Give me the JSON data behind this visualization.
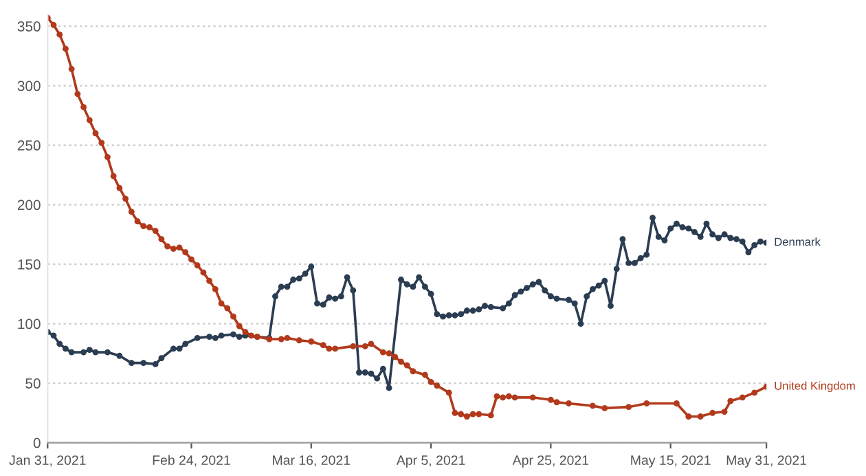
{
  "chart_data": {
    "type": "line",
    "marker": "circle",
    "line_style": "solid",
    "grid": "y",
    "legend": false,
    "xlim": [
      "2021-01-31",
      "2021-05-31"
    ],
    "ylim": [
      0,
      360
    ],
    "yticks": [
      0,
      50,
      100,
      150,
      200,
      250,
      300,
      350
    ],
    "xticks": [
      {
        "value": "2021-01-31",
        "label": "Jan 31, 2021"
      },
      {
        "value": "2021-02-24",
        "label": "Feb 24, 2021"
      },
      {
        "value": "2021-03-16",
        "label": "Mar 16, 2021"
      },
      {
        "value": "2021-04-05",
        "label": "Apr 5, 2021"
      },
      {
        "value": "2021-04-25",
        "label": "Apr 25, 2021"
      },
      {
        "value": "2021-05-15",
        "label": "May 15, 2021"
      },
      {
        "value": "2021-05-31",
        "label": "May 31, 2021"
      }
    ],
    "series": [
      {
        "name": "Denmark",
        "color": "#2b3d52",
        "x": [
          "2021-01-31",
          "2021-02-01",
          "2021-02-02",
          "2021-02-03",
          "2021-02-04",
          "2021-02-06",
          "2021-02-07",
          "2021-02-08",
          "2021-02-10",
          "2021-02-12",
          "2021-02-14",
          "2021-02-16",
          "2021-02-18",
          "2021-02-19",
          "2021-02-21",
          "2021-02-22",
          "2021-02-23",
          "2021-02-25",
          "2021-02-27",
          "2021-02-28",
          "2021-03-01",
          "2021-03-03",
          "2021-03-04",
          "2021-03-05",
          "2021-03-07",
          "2021-03-09",
          "2021-03-10",
          "2021-03-11",
          "2021-03-12",
          "2021-03-13",
          "2021-03-14",
          "2021-03-15",
          "2021-03-16",
          "2021-03-17",
          "2021-03-18",
          "2021-03-19",
          "2021-03-20",
          "2021-03-21",
          "2021-03-22",
          "2021-03-23",
          "2021-03-24",
          "2021-03-25",
          "2021-03-26",
          "2021-03-27",
          "2021-03-28",
          "2021-03-29",
          "2021-03-31",
          "2021-04-01",
          "2021-04-02",
          "2021-04-03",
          "2021-04-04",
          "2021-04-05",
          "2021-04-06",
          "2021-04-07",
          "2021-04-08",
          "2021-04-09",
          "2021-04-10",
          "2021-04-11",
          "2021-04-12",
          "2021-04-13",
          "2021-04-14",
          "2021-04-15",
          "2021-04-17",
          "2021-04-18",
          "2021-04-19",
          "2021-04-20",
          "2021-04-21",
          "2021-04-22",
          "2021-04-23",
          "2021-04-24",
          "2021-04-25",
          "2021-04-26",
          "2021-04-28",
          "2021-04-29",
          "2021-04-30",
          "2021-05-01",
          "2021-05-02",
          "2021-05-03",
          "2021-05-04",
          "2021-05-05",
          "2021-05-06",
          "2021-05-07",
          "2021-05-08",
          "2021-05-09",
          "2021-05-10",
          "2021-05-11",
          "2021-05-12",
          "2021-05-13",
          "2021-05-14",
          "2021-05-15",
          "2021-05-16",
          "2021-05-17",
          "2021-05-18",
          "2021-05-19",
          "2021-05-20",
          "2021-05-21",
          "2021-05-22",
          "2021-05-23",
          "2021-05-24",
          "2021-05-25",
          "2021-05-26",
          "2021-05-27",
          "2021-05-28",
          "2021-05-29",
          "2021-05-30",
          "2021-05-31"
        ],
        "values": [
          93,
          90,
          83,
          79,
          76,
          76,
          78,
          76,
          76,
          73,
          67,
          67,
          66,
          71,
          79,
          79,
          83,
          88,
          89,
          88,
          90,
          91,
          89,
          90,
          89,
          88,
          123,
          131,
          131,
          137,
          138,
          142,
          148,
          117,
          116,
          122,
          121,
          123,
          139,
          128,
          59,
          59,
          58,
          54,
          62,
          46,
          137,
          133,
          131,
          139,
          131,
          125,
          108,
          106,
          107,
          107,
          108,
          111,
          111,
          112,
          115,
          114,
          113,
          117,
          124,
          127,
          130,
          133,
          135,
          128,
          123,
          121,
          120,
          117,
          100,
          123,
          129,
          132,
          136,
          115,
          146,
          171,
          151,
          151,
          155,
          158,
          189,
          173,
          170,
          180,
          184,
          181,
          180,
          177,
          173,
          184,
          175,
          172,
          175,
          172,
          171,
          169,
          160,
          166,
          169,
          168
        ]
      },
      {
        "name": "United Kingdom",
        "color": "#b23a1c",
        "x": [
          "2021-01-31",
          "2021-02-01",
          "2021-02-02",
          "2021-02-03",
          "2021-02-04",
          "2021-02-05",
          "2021-02-06",
          "2021-02-07",
          "2021-02-08",
          "2021-02-09",
          "2021-02-10",
          "2021-02-11",
          "2021-02-12",
          "2021-02-13",
          "2021-02-14",
          "2021-02-15",
          "2021-02-16",
          "2021-02-17",
          "2021-02-18",
          "2021-02-19",
          "2021-02-20",
          "2021-02-21",
          "2021-02-22",
          "2021-02-23",
          "2021-02-24",
          "2021-02-25",
          "2021-02-26",
          "2021-02-27",
          "2021-02-28",
          "2021-03-01",
          "2021-03-02",
          "2021-03-03",
          "2021-03-04",
          "2021-03-05",
          "2021-03-06",
          "2021-03-07",
          "2021-03-09",
          "2021-03-11",
          "2021-03-12",
          "2021-03-14",
          "2021-03-16",
          "2021-03-18",
          "2021-03-19",
          "2021-03-20",
          "2021-03-23",
          "2021-03-25",
          "2021-03-26",
          "2021-03-28",
          "2021-03-29",
          "2021-03-30",
          "2021-03-31",
          "2021-04-01",
          "2021-04-02",
          "2021-04-04",
          "2021-04-05",
          "2021-04-06",
          "2021-04-08",
          "2021-04-09",
          "2021-04-10",
          "2021-04-11",
          "2021-04-12",
          "2021-04-13",
          "2021-04-15",
          "2021-04-16",
          "2021-04-17",
          "2021-04-18",
          "2021-04-19",
          "2021-04-22",
          "2021-04-25",
          "2021-04-26",
          "2021-04-28",
          "2021-05-02",
          "2021-05-04",
          "2021-05-08",
          "2021-05-11",
          "2021-05-16",
          "2021-05-18",
          "2021-05-20",
          "2021-05-22",
          "2021-05-24",
          "2021-05-25",
          "2021-05-27",
          "2021-05-29",
          "2021-05-31"
        ],
        "values": [
          357,
          351,
          343,
          331,
          314,
          293,
          282,
          271,
          260,
          252,
          240,
          224,
          214,
          205,
          194,
          186,
          182,
          181,
          178,
          171,
          165,
          163,
          164,
          160,
          154,
          149,
          143,
          136,
          129,
          117,
          113,
          106,
          98,
          93,
          90,
          89,
          87,
          87,
          88,
          86,
          85,
          82,
          79,
          79,
          81,
          81,
          83,
          76,
          75,
          72,
          68,
          65,
          60,
          57,
          51,
          48,
          42,
          25,
          24,
          22,
          24,
          24,
          23,
          39,
          38,
          39,
          38,
          38,
          36,
          34,
          33,
          31,
          29,
          30,
          33,
          33,
          22,
          22,
          25,
          26,
          35,
          38,
          42,
          47
        ]
      }
    ]
  }
}
